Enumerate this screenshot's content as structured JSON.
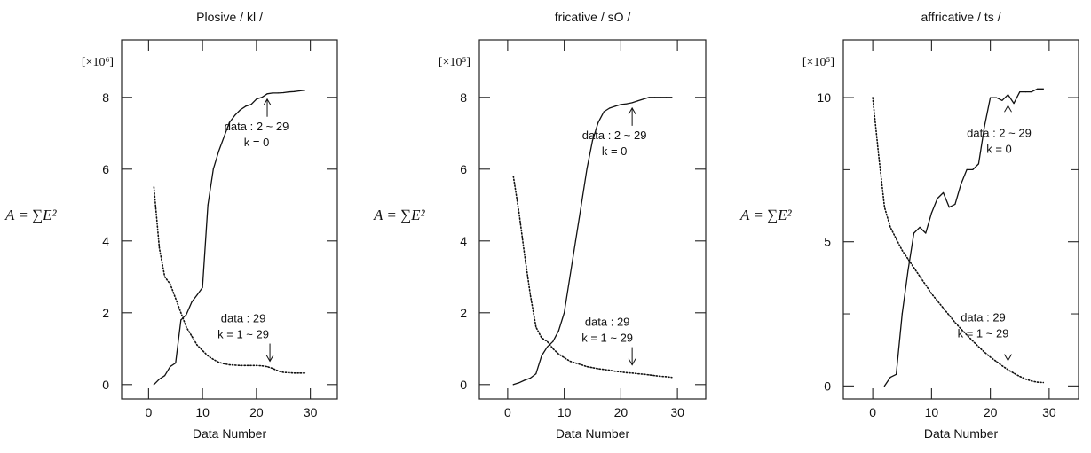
{
  "chart_data": [
    {
      "type": "line",
      "title": "Plosive / kl /",
      "xlabel": "Data Number",
      "ylabel": "A = ∑E²",
      "y_multiplier": "[×10⁶]",
      "xlim": [
        -5,
        35
      ],
      "ylim": [
        -0.4,
        9.6
      ],
      "xticks": [
        0,
        10,
        20,
        30
      ],
      "yticks": [
        0,
        2,
        4,
        6,
        8
      ],
      "grid": false,
      "series": [
        {
          "style": "solid",
          "x": [
            1,
            2,
            3,
            4,
            5,
            6,
            7,
            8,
            9,
            10,
            11,
            12,
            13,
            14,
            15,
            16,
            17,
            18,
            19,
            20,
            21,
            22,
            23,
            24,
            25,
            26,
            27,
            28,
            29
          ],
          "y": [
            0.0,
            0.15,
            0.25,
            0.5,
            0.6,
            1.8,
            1.95,
            2.3,
            2.5,
            2.7,
            5.0,
            6.0,
            6.5,
            6.9,
            7.3,
            7.5,
            7.65,
            7.75,
            7.8,
            7.95,
            8.0,
            8.1,
            8.12,
            8.12,
            8.13,
            8.15,
            8.16,
            8.18,
            8.2
          ]
        },
        {
          "style": "dotted",
          "x": [
            1,
            2,
            3,
            4,
            5,
            6,
            7,
            8,
            9,
            10,
            11,
            12,
            13,
            14,
            15,
            16,
            17,
            18,
            19,
            20,
            21,
            22,
            23,
            24,
            25,
            26,
            27,
            28,
            29
          ],
          "y": [
            5.5,
            3.8,
            3.0,
            2.8,
            2.4,
            2.0,
            1.6,
            1.35,
            1.1,
            0.95,
            0.8,
            0.7,
            0.62,
            0.58,
            0.55,
            0.54,
            0.53,
            0.53,
            0.53,
            0.53,
            0.52,
            0.5,
            0.45,
            0.38,
            0.34,
            0.33,
            0.32,
            0.32,
            0.32
          ]
        }
      ],
      "annotations": [
        {
          "lines": [
            "data : 2 ~ 29",
            "k = 0"
          ],
          "arrow": "up",
          "x": 22,
          "y": 8.1
        },
        {
          "lines": [
            "data : 29",
            "k = 1 ~ 29"
          ],
          "arrow": "down",
          "x": 22.5,
          "y": 0.5
        }
      ]
    },
    {
      "type": "line",
      "title": "fricative / sO /",
      "xlabel": "Data Number",
      "ylabel": "A = ∑E²",
      "y_multiplier": "[×10⁵]",
      "xlim": [
        -5,
        35
      ],
      "ylim": [
        -0.4,
        9.6
      ],
      "xticks": [
        0,
        10,
        20,
        30
      ],
      "yticks": [
        0,
        2,
        4,
        6,
        8
      ],
      "grid": false,
      "series": [
        {
          "style": "solid",
          "x": [
            1,
            2,
            3,
            4,
            5,
            6,
            7,
            8,
            9,
            10,
            11,
            12,
            13,
            14,
            15,
            16,
            17,
            18,
            19,
            20,
            21,
            22,
            23,
            24,
            25,
            26,
            27,
            28,
            29
          ],
          "y": [
            0.0,
            0.05,
            0.12,
            0.18,
            0.3,
            0.8,
            1.05,
            1.2,
            1.5,
            2.0,
            3.0,
            4.0,
            5.0,
            6.0,
            6.8,
            7.3,
            7.6,
            7.7,
            7.75,
            7.8,
            7.82,
            7.85,
            7.9,
            7.95,
            8.0,
            8.0,
            8.0,
            8.0,
            8.0
          ]
        },
        {
          "style": "dotted",
          "x": [
            1,
            2,
            3,
            4,
            5,
            6,
            7,
            8,
            9,
            10,
            11,
            12,
            13,
            14,
            15,
            16,
            17,
            18,
            19,
            20,
            21,
            22,
            23,
            24,
            25,
            26,
            27,
            28,
            29
          ],
          "y": [
            5.8,
            4.8,
            3.6,
            2.5,
            1.6,
            1.3,
            1.2,
            1.0,
            0.85,
            0.75,
            0.65,
            0.6,
            0.55,
            0.5,
            0.47,
            0.44,
            0.42,
            0.4,
            0.37,
            0.35,
            0.33,
            0.32,
            0.3,
            0.29,
            0.27,
            0.25,
            0.23,
            0.22,
            0.2
          ]
        }
      ],
      "annotations": [
        {
          "lines": [
            "data : 2 ~ 29",
            "k = 0"
          ],
          "arrow": "up",
          "x": 22,
          "y": 7.85
        },
        {
          "lines": [
            "data : 29",
            "k = 1 ~ 29"
          ],
          "arrow": "down",
          "x": 22,
          "y": 0.4
        }
      ]
    },
    {
      "type": "line",
      "title": "affricative / ts /",
      "xlabel": "Data Number",
      "ylabel": "A = ∑E²",
      "y_multiplier": "[×10⁵]",
      "xlim": [
        -5,
        35
      ],
      "ylim": [
        -0.45,
        12.0
      ],
      "xticks": [
        0,
        10,
        20,
        30
      ],
      "yticks": [
        0,
        5,
        10
      ],
      "minor_yticks": [
        2.5,
        7.5
      ],
      "grid": false,
      "series": [
        {
          "style": "solid",
          "x": [
            2,
            3,
            4,
            5,
            6,
            7,
            8,
            9,
            10,
            11,
            12,
            13,
            14,
            15,
            16,
            17,
            18,
            19,
            20,
            21,
            22,
            23,
            24,
            25,
            26,
            27,
            28,
            29
          ],
          "y": [
            0.0,
            0.3,
            0.4,
            2.5,
            4.0,
            5.3,
            5.5,
            5.3,
            6.0,
            6.5,
            6.7,
            6.2,
            6.3,
            7.0,
            7.5,
            7.5,
            7.7,
            9.0,
            10.0,
            10.0,
            9.9,
            10.1,
            9.8,
            10.2,
            10.2,
            10.2,
            10.3,
            10.3
          ]
        },
        {
          "style": "dotted",
          "x": [
            0,
            1,
            2,
            3,
            4,
            5,
            6,
            7,
            8,
            9,
            10,
            11,
            12,
            13,
            14,
            15,
            16,
            17,
            18,
            19,
            20,
            21,
            22,
            23,
            24,
            25,
            26,
            27,
            28,
            29
          ],
          "y": [
            10.0,
            8.0,
            6.2,
            5.5,
            5.1,
            4.7,
            4.4,
            4.1,
            3.8,
            3.5,
            3.2,
            2.95,
            2.7,
            2.45,
            2.2,
            1.98,
            1.77,
            1.56,
            1.36,
            1.17,
            1.0,
            0.85,
            0.7,
            0.56,
            0.44,
            0.33,
            0.24,
            0.17,
            0.13,
            0.12
          ]
        }
      ],
      "annotations": [
        {
          "lines": [
            "data : 2 ~ 29",
            "k = 0"
          ],
          "arrow": "up",
          "x": 23,
          "y": 9.9
        },
        {
          "lines": [
            "data : 29",
            "k = 1 ~ 29"
          ],
          "arrow": "down",
          "x": 23,
          "y": 0.7
        }
      ]
    }
  ]
}
